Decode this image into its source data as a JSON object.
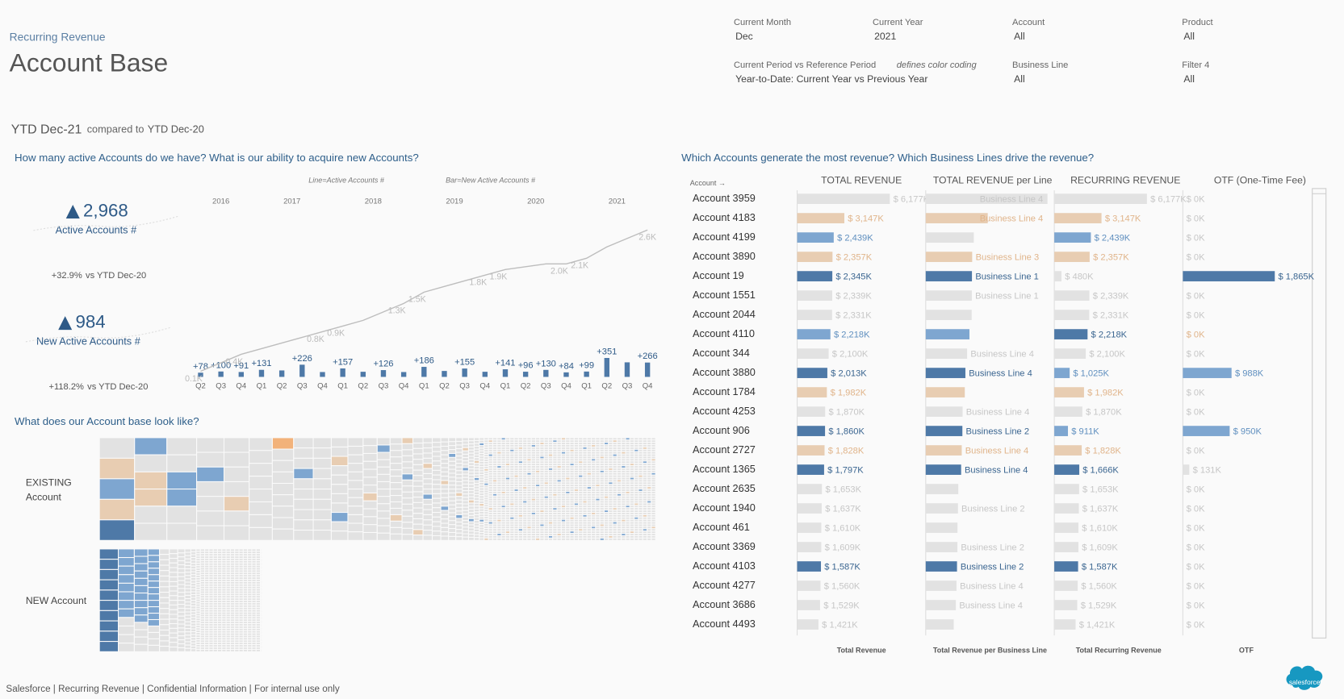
{
  "header": {
    "subtitle": "Recurring Revenue",
    "title": "Account Base"
  },
  "filters": [
    {
      "label": "Current Month",
      "value": "Dec"
    },
    {
      "label": "Current Year",
      "value": "2021"
    },
    {
      "label": "Account",
      "value": "All"
    },
    {
      "label": "Product",
      "value": "All"
    },
    {
      "label": "Current Period vs Reference Period",
      "note": "defines color coding",
      "value": "Year-to-Date: Current Year vs Previous Year"
    },
    {
      "label": "Business Line",
      "value": "All"
    },
    {
      "label": "Filter 4",
      "value": "All"
    }
  ],
  "period": {
    "current": "YTD Dec-21",
    "text": "compared to",
    "reference": "YTD Dec-20"
  },
  "accounts_section": {
    "question": "How many active Accounts do we have? What is our ability to acquire new Accounts?",
    "kpis": [
      {
        "value": "2,968",
        "label": "Active Accounts #",
        "change": "+32.9%",
        "compare": "vs YTD Dec-20"
      },
      {
        "value": "984",
        "label": "New Active Accounts #",
        "change": "+118.2%",
        "compare": "vs YTD Dec-20"
      }
    ]
  },
  "chart_data": {
    "type": "combo",
    "legend": {
      "line": "Line=Active Accounts #",
      "bar": "Bar=New Active Accounts #"
    },
    "years": [
      "2016",
      "2017",
      "2018",
      "2019",
      "2020",
      "2021"
    ],
    "categories": [
      "Q2",
      "Q3",
      "Q4",
      "Q1",
      "Q2",
      "Q3",
      "Q4",
      "Q1",
      "Q2",
      "Q3",
      "Q4",
      "Q1",
      "Q2",
      "Q3",
      "Q4",
      "Q1",
      "Q2",
      "Q3",
      "Q4",
      "Q1",
      "Q2",
      "Q3",
      "Q4"
    ],
    "series": [
      {
        "type": "bar",
        "color": "#4e79a7",
        "values": [
          78,
          100,
          91,
          131,
          120,
          226,
          90,
          157,
          95,
          126,
          90,
          186,
          110,
          155,
          95,
          141,
          96,
          130,
          84,
          99,
          351,
          270,
          266
        ],
        "value_labels": [
          "+78",
          "+100",
          "+91",
          "+131",
          null,
          "+226",
          null,
          "+157",
          null,
          "+126",
          null,
          "+186",
          null,
          "+155",
          null,
          "+141",
          "+96",
          "+130",
          "+84",
          "+99",
          "+351",
          null,
          "+266"
        ]
      },
      {
        "type": "line",
        "color": "#bdbdbd",
        "values": [
          100,
          250,
          400,
          500,
          600,
          700,
          800,
          900,
          1000,
          1150,
          1300,
          1500,
          1600,
          1700,
          1800,
          1900,
          1950,
          2000,
          2000,
          2100,
          2300,
          2450,
          2600
        ],
        "value_labels": [
          "0.1K",
          null,
          "0.4K",
          null,
          null,
          null,
          "0.8K",
          "0.9K",
          null,
          null,
          "1.3K",
          "1.5K",
          null,
          null,
          "1.8K",
          "1.9K",
          null,
          null,
          "2.0K",
          "2.1K",
          null,
          null,
          "2.6K"
        ]
      }
    ]
  },
  "base_section": {
    "question": "What does our Account base look like?",
    "existing": [
      "EXISTING",
      "Account"
    ],
    "new": "NEW Account"
  },
  "revenue_section": {
    "question": "Which Accounts generate the most revenue? Which Business Lines drive the revenue?",
    "account_header": "Account →",
    "columns": [
      "TOTAL REVENUE",
      "TOTAL REVENUE per Line",
      "RECURRING REVENUE",
      "OTF (One-Time Fee)"
    ],
    "footers": [
      "Total Revenue",
      "Total Revenue per Business Line",
      "Total Recurring Revenue",
      "OTF"
    ],
    "palette": {
      "dark": {
        "bar": "#4e79a7",
        "text": "#3a6590"
      },
      "light": {
        "bar": "#7ea6d0",
        "text": "#5f8fbf"
      },
      "orange": {
        "bar": "#e8cdb2",
        "text": "#e0b48a"
      },
      "grey": {
        "bar": "#e2e2e2",
        "text": "#c6c6c6"
      }
    },
    "rows": [
      {
        "account": "Account 3959",
        "total": 6177,
        "total_label": "$ 6,177K",
        "business_line": "Business Line 4",
        "recurring": 6177,
        "recurring_label": "$ 6,177K",
        "otf": 0,
        "otf_label": "$ 0K",
        "colors": [
          "grey",
          "grey",
          "grey",
          "grey"
        ]
      },
      {
        "account": "Account 4183",
        "total": 3147,
        "total_label": "$ 3,147K",
        "business_line": "Business Line 4",
        "recurring": 3147,
        "recurring_label": "$ 3,147K",
        "otf": 0,
        "otf_label": "$ 0K",
        "colors": [
          "orange",
          "orange",
          "orange",
          "grey"
        ]
      },
      {
        "account": "Account 4199",
        "total": 2439,
        "total_label": "$ 2,439K",
        "business_line": null,
        "recurring": 2439,
        "recurring_label": "$ 2,439K",
        "otf": 0,
        "otf_label": "$ 0K",
        "colors": [
          "light",
          "grey",
          "light",
          "grey"
        ]
      },
      {
        "account": "Account 3890",
        "total": 2357,
        "total_label": "$ 2,357K",
        "business_line": "Business Line 3",
        "recurring": 2357,
        "recurring_label": "$ 2,357K",
        "otf": 0,
        "otf_label": "$ 0K",
        "colors": [
          "orange",
          "orange",
          "orange",
          "grey"
        ]
      },
      {
        "account": "Account 19",
        "total": 2345,
        "total_label": "$ 2,345K",
        "business_line": "Business Line 1",
        "recurring": 480,
        "recurring_label": "$ 480K",
        "otf": 1865,
        "otf_label": "$ 1,865K",
        "colors": [
          "dark",
          "dark",
          "grey",
          "dark"
        ]
      },
      {
        "account": "Account 1551",
        "total": 2339,
        "total_label": "$ 2,339K",
        "business_line": "Business Line 1",
        "recurring": 2339,
        "recurring_label": "$ 2,339K",
        "otf": 0,
        "otf_label": "$ 0K",
        "colors": [
          "grey",
          "grey",
          "grey",
          "grey"
        ]
      },
      {
        "account": "Account 2044",
        "total": 2331,
        "total_label": "$ 2,331K",
        "business_line": null,
        "recurring": 2331,
        "recurring_label": "$ 2,331K",
        "otf": 0,
        "otf_label": "$ 0K",
        "colors": [
          "grey",
          "grey",
          "grey",
          "grey"
        ]
      },
      {
        "account": "Account 4110",
        "total": 2218,
        "total_label": "$ 2,218K",
        "business_line": null,
        "recurring": 2218,
        "recurring_label": "$ 2,218K",
        "otf": 0,
        "otf_label": "$ 0K",
        "colors": [
          "light",
          "light",
          "dark",
          "orange"
        ]
      },
      {
        "account": "Account 344",
        "total": 2100,
        "total_label": "$ 2,100K",
        "business_line": "Business Line 4",
        "recurring": 2100,
        "recurring_label": "$ 2,100K",
        "otf": 0,
        "otf_label": "$ 0K",
        "colors": [
          "grey",
          "grey",
          "grey",
          "grey"
        ]
      },
      {
        "account": "Account 3880",
        "total": 2013,
        "total_label": "$ 2,013K",
        "business_line": "Business Line 4",
        "recurring": 1025,
        "recurring_label": "$ 1,025K",
        "otf": 988,
        "otf_label": "$ 988K",
        "colors": [
          "dark",
          "dark",
          "light",
          "light"
        ]
      },
      {
        "account": "Account 1784",
        "total": 1982,
        "total_label": "$ 1,982K",
        "business_line": null,
        "recurring": 1982,
        "recurring_label": "$ 1,982K",
        "otf": 0,
        "otf_label": "$ 0K",
        "colors": [
          "orange",
          "orange",
          "orange",
          "grey"
        ]
      },
      {
        "account": "Account 4253",
        "total": 1870,
        "total_label": "$ 1,870K",
        "business_line": "Business Line 4",
        "recurring": 1870,
        "recurring_label": "$ 1,870K",
        "otf": 0,
        "otf_label": "$ 0K",
        "colors": [
          "grey",
          "grey",
          "grey",
          "grey"
        ]
      },
      {
        "account": "Account 906",
        "total": 1860,
        "total_label": "$ 1,860K",
        "business_line": "Business Line 2",
        "recurring": 911,
        "recurring_label": "$ 911K",
        "otf": 950,
        "otf_label": "$ 950K",
        "colors": [
          "dark",
          "dark",
          "light",
          "light"
        ]
      },
      {
        "account": "Account 2727",
        "total": 1828,
        "total_label": "$ 1,828K",
        "business_line": "Business Line 4",
        "recurring": 1828,
        "recurring_label": "$ 1,828K",
        "otf": 0,
        "otf_label": "$ 0K",
        "colors": [
          "orange",
          "orange",
          "orange",
          "grey"
        ]
      },
      {
        "account": "Account 1365",
        "total": 1797,
        "total_label": "$ 1,797K",
        "business_line": "Business Line 4",
        "recurring": 1666,
        "recurring_label": "$ 1,666K",
        "otf": 131,
        "otf_label": "$ 131K",
        "colors": [
          "dark",
          "dark",
          "dark",
          "grey"
        ]
      },
      {
        "account": "Account 2635",
        "total": 1653,
        "total_label": "$ 1,653K",
        "business_line": null,
        "recurring": 1653,
        "recurring_label": "$ 1,653K",
        "otf": 0,
        "otf_label": "$ 0K",
        "colors": [
          "grey",
          "grey",
          "grey",
          "grey"
        ]
      },
      {
        "account": "Account 1940",
        "total": 1637,
        "total_label": "$ 1,637K",
        "business_line": "Business Line 2",
        "recurring": 1637,
        "recurring_label": "$ 1,637K",
        "otf": 0,
        "otf_label": "$ 0K",
        "colors": [
          "grey",
          "grey",
          "grey",
          "grey"
        ]
      },
      {
        "account": "Account 461",
        "total": 1610,
        "total_label": "$ 1,610K",
        "business_line": null,
        "recurring": 1610,
        "recurring_label": "$ 1,610K",
        "otf": 0,
        "otf_label": "$ 0K",
        "colors": [
          "grey",
          "grey",
          "grey",
          "grey"
        ]
      },
      {
        "account": "Account 3369",
        "total": 1609,
        "total_label": "$ 1,609K",
        "business_line": "Business Line 2",
        "recurring": 1609,
        "recurring_label": "$ 1,609K",
        "otf": 0,
        "otf_label": "$ 0K",
        "colors": [
          "grey",
          "grey",
          "grey",
          "grey"
        ]
      },
      {
        "account": "Account 4103",
        "total": 1587,
        "total_label": "$ 1,587K",
        "business_line": "Business Line 2",
        "recurring": 1587,
        "recurring_label": "$ 1,587K",
        "otf": 0,
        "otf_label": "$ 0K",
        "colors": [
          "dark",
          "dark",
          "dark",
          "grey"
        ]
      },
      {
        "account": "Account 4277",
        "total": 1560,
        "total_label": "$ 1,560K",
        "business_line": "Business Line 4",
        "recurring": 1560,
        "recurring_label": "$ 1,560K",
        "otf": 0,
        "otf_label": "$ 0K",
        "colors": [
          "grey",
          "grey",
          "grey",
          "grey"
        ]
      },
      {
        "account": "Account 3686",
        "total": 1529,
        "total_label": "$ 1,529K",
        "business_line": "Business Line 4",
        "recurring": 1529,
        "recurring_label": "$ 1,529K",
        "otf": 0,
        "otf_label": "$ 0K",
        "colors": [
          "grey",
          "grey",
          "grey",
          "grey"
        ]
      },
      {
        "account": "Account 4493",
        "total": 1421,
        "total_label": "$ 1,421K",
        "business_line": null,
        "recurring": 1421,
        "recurring_label": "$ 1,421K",
        "otf": 0,
        "otf_label": "$ 0K",
        "colors": [
          "grey",
          "grey",
          "grey",
          "grey"
        ]
      }
    ]
  },
  "footer": {
    "text": "Salesforce | Recurring Revenue | Confidential Information | For internal use only",
    "logo": "salesforce"
  }
}
